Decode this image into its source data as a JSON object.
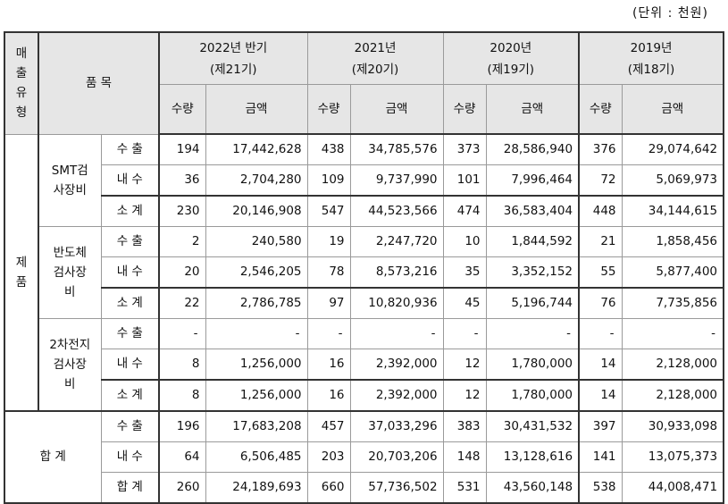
{
  "unit_label": "(단위 : 천원)",
  "header": {
    "sales_type": "매\n출\n유\n형",
    "item": "품 목",
    "periods": [
      {
        "year": "2022년 반기",
        "term": "(제21기)"
      },
      {
        "year": "2021년",
        "term": "(제20기)"
      },
      {
        "year": "2020년",
        "term": "(제19기)"
      },
      {
        "year": "2019년",
        "term": "(제18기)"
      }
    ],
    "qty": "수량",
    "amount": "금액"
  },
  "groups": [
    {
      "category": "제\n품",
      "products": [
        {
          "name": "SMT검\n사장비",
          "rows": [
            {
              "label": "수 출",
              "values": [
                "194",
                "17,442,628",
                "438",
                "34,785,576",
                "373",
                "28,586,940",
                "376",
                "29,074,642"
              ]
            },
            {
              "label": "내 수",
              "values": [
                "36",
                "2,704,280",
                "109",
                "9,737,990",
                "101",
                "7,996,464",
                "72",
                "5,069,973"
              ]
            },
            {
              "label": "소 계",
              "values": [
                "230",
                "20,146,908",
                "547",
                "44,523,566",
                "474",
                "36,583,404",
                "448",
                "34,144,615"
              ]
            }
          ]
        },
        {
          "name": "반도체\n검사장\n비",
          "rows": [
            {
              "label": "수 출",
              "values": [
                "2",
                "240,580",
                "19",
                "2,247,720",
                "10",
                "1,844,592",
                "21",
                "1,858,456"
              ]
            },
            {
              "label": "내 수",
              "values": [
                "20",
                "2,546,205",
                "78",
                "8,573,216",
                "35",
                "3,352,152",
                "55",
                "5,877,400"
              ]
            },
            {
              "label": "소 계",
              "values": [
                "22",
                "2,786,785",
                "97",
                "10,820,936",
                "45",
                "5,196,744",
                "76",
                "7,735,856"
              ]
            }
          ]
        },
        {
          "name": "2차전지\n검사장\n비",
          "rows": [
            {
              "label": "수 출",
              "values": [
                "-",
                "-",
                "-",
                "-",
                "-",
                "-",
                "-",
                "-"
              ]
            },
            {
              "label": "내 수",
              "values": [
                "8",
                "1,256,000",
                "16",
                "2,392,000",
                "12",
                "1,780,000",
                "14",
                "2,128,000"
              ]
            },
            {
              "label": "소 계",
              "values": [
                "8",
                "1,256,000",
                "16",
                "2,392,000",
                "12",
                "1,780,000",
                "14",
                "2,128,000"
              ]
            }
          ]
        }
      ]
    }
  ],
  "total": {
    "label": "합 계",
    "rows": [
      {
        "label": "수 출",
        "values": [
          "196",
          "17,683,208",
          "457",
          "37,033,296",
          "383",
          "30,431,532",
          "397",
          "30,933,098"
        ]
      },
      {
        "label": "내 수",
        "values": [
          "64",
          "6,506,485",
          "203",
          "20,703,206",
          "148",
          "13,128,616",
          "141",
          "13,075,373"
        ]
      },
      {
        "label": "합 계",
        "values": [
          "260",
          "24,189,693",
          "660",
          "57,736,502",
          "531",
          "43,560,148",
          "538",
          "44,008,471"
        ]
      }
    ]
  }
}
